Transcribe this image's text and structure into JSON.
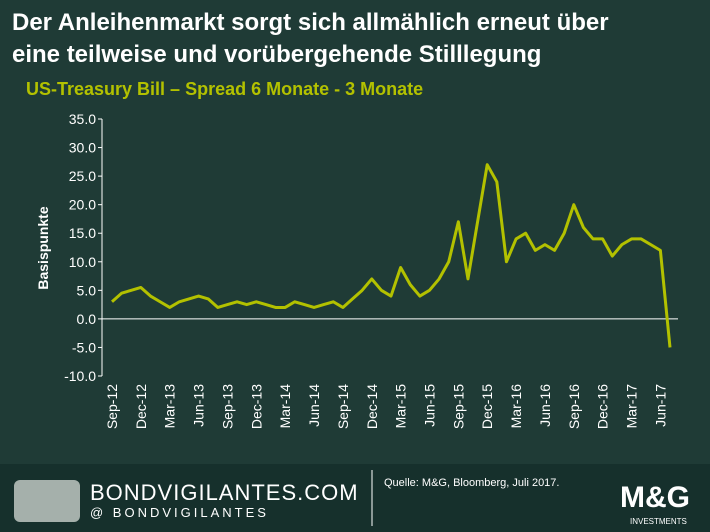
{
  "chart_data": {
    "type": "line",
    "title": [
      "Der Anleihenmarkt sorgt sich allmählich erneut über",
      "eine teilweise und vorübergehende Stilllegung"
    ],
    "subtitle": "US-Treasury Bill – Spread 6 Monate - 3 Monate",
    "ylabel": "Basispunkte",
    "x": [
      "Sep-12",
      null,
      null,
      "Dec-12",
      null,
      null,
      "Mar-13",
      null,
      null,
      "Jun-13",
      null,
      null,
      "Sep-13",
      null,
      null,
      "Dec-13",
      null,
      null,
      "Mar-14",
      null,
      null,
      "Jun-14",
      null,
      null,
      "Sep-14",
      null,
      null,
      "Dec-14",
      null,
      null,
      "Mar-15",
      null,
      null,
      "Jun-15",
      null,
      null,
      "Sep-15",
      null,
      null,
      "Dec-15",
      null,
      null,
      "Mar-16",
      null,
      null,
      "Jun-16",
      null,
      null,
      "Sep-16",
      null,
      null,
      "Dec-16",
      null,
      null,
      "Mar-17",
      null,
      null,
      "Jun-17",
      null
    ],
    "series": [
      {
        "name": "Spread",
        "color": "#b3c100",
        "values": [
          3,
          4.5,
          5,
          5.5,
          4,
          3,
          2,
          3,
          3.5,
          4,
          3.5,
          2,
          2.5,
          3,
          2.5,
          3,
          2.5,
          2,
          2,
          3,
          2.5,
          2,
          2.5,
          3,
          2,
          3.5,
          5,
          7,
          5,
          4,
          9,
          6,
          4,
          5,
          7,
          10,
          17,
          7,
          17,
          27,
          24,
          10,
          14,
          15,
          12,
          13,
          12,
          15,
          20,
          16,
          14,
          14,
          11,
          13,
          14,
          14,
          13,
          12,
          -5
        ]
      }
    ],
    "ylim": [
      -10,
      35
    ],
    "yticks": [
      {
        "value": 35,
        "label": "35.0"
      },
      {
        "value": 30,
        "label": "30.0"
      },
      {
        "value": 25,
        "label": "25.0"
      },
      {
        "value": 20,
        "label": "20.0"
      },
      {
        "value": 15,
        "label": "15.0"
      },
      {
        "value": 10,
        "label": "10.0"
      },
      {
        "value": 5,
        "label": "5.0"
      },
      {
        "value": 0,
        "label": "0.0"
      },
      {
        "value": -5,
        "label": "-5.0"
      },
      {
        "value": -10,
        "label": "-10.0"
      }
    ],
    "grid": false
  },
  "footer": {
    "brand": "BONDVIGILANTES.COM",
    "handle": "@ BONDVIGILANTES",
    "source": "Quelle: M&G, Bloomberg, Juli 2017.",
    "logo": "M&G",
    "logo_sub": "INVESTMENTS"
  }
}
